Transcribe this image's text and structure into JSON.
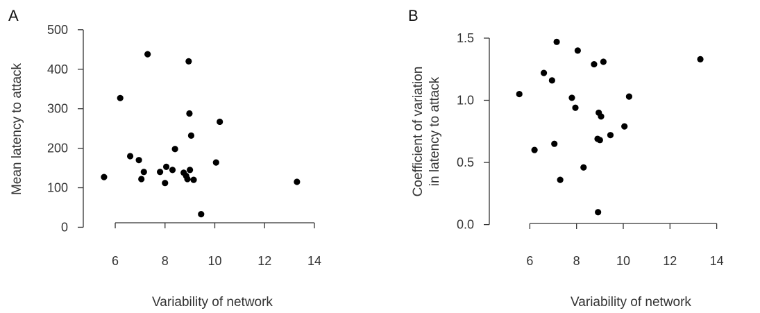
{
  "chart_data": [
    {
      "type": "scatter",
      "panel_label": "A",
      "xlabel": "Variability of network",
      "ylabel": "Mean latency to attack",
      "xlim": [
        4.8,
        15.2
      ],
      "ylim": [
        -8,
        512
      ],
      "xticks": [
        6,
        8,
        10,
        12,
        14
      ],
      "yticks": [
        0,
        100,
        200,
        300,
        400,
        500
      ],
      "x": [
        5.55,
        6.2,
        6.6,
        6.95,
        7.05,
        7.15,
        7.3,
        7.8,
        8.0,
        8.05,
        8.3,
        8.4,
        8.75,
        8.85,
        8.9,
        8.95,
        8.98,
        9.0,
        9.05,
        9.15,
        9.45,
        10.05,
        10.2,
        13.3
      ],
      "y": [
        127,
        327,
        180,
        170,
        122,
        140,
        438,
        140,
        112,
        153,
        145,
        198,
        138,
        130,
        122,
        420,
        288,
        145,
        232,
        120,
        33,
        164,
        267,
        115
      ]
    },
    {
      "type": "scatter",
      "panel_label": "B",
      "xlabel": "Variability of network",
      "ylabel": "Coefficient of variation in latency to attack",
      "ylabel_lines": [
        "Coefficient of variation",
        "in latency to attack"
      ],
      "xlim": [
        4.8,
        15.2
      ],
      "ylim": [
        -0.03,
        1.55
      ],
      "xticks": [
        6,
        8,
        10,
        12,
        14
      ],
      "yticks": [
        0.0,
        0.5,
        1.0,
        1.5
      ],
      "ytick_labels": [
        "0.0",
        "0.5",
        "1.0",
        "1.5"
      ],
      "x": [
        5.55,
        6.2,
        6.6,
        6.95,
        7.05,
        7.15,
        7.3,
        7.8,
        7.95,
        8.05,
        8.3,
        8.75,
        8.9,
        8.92,
        8.95,
        9.0,
        9.05,
        9.15,
        9.45,
        10.05,
        10.25,
        13.3
      ],
      "y": [
        1.05,
        0.6,
        1.22,
        1.16,
        0.65,
        1.47,
        0.36,
        1.02,
        0.94,
        1.4,
        0.46,
        1.29,
        0.69,
        0.1,
        0.9,
        0.68,
        0.87,
        1.31,
        0.72,
        0.79,
        1.03,
        1.33
      ]
    }
  ]
}
